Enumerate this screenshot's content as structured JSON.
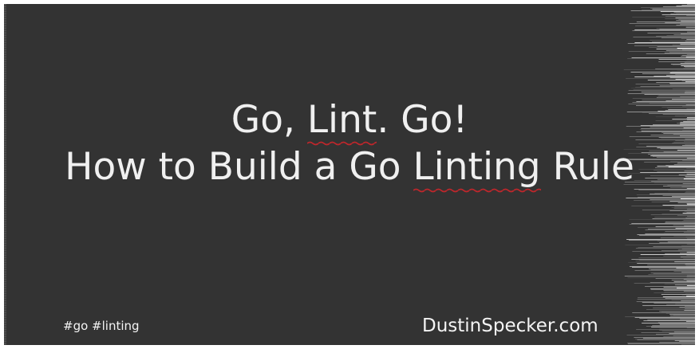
{
  "title": {
    "line1": {
      "before": "Go, ",
      "flagged": "Lint",
      "after": ". Go!"
    },
    "line2": {
      "before": "How to Build a Go ",
      "flagged": "Linting",
      "after": " Rule"
    }
  },
  "footer": {
    "tags": "#go #linting",
    "site": "DustinSpecker.com"
  },
  "colors": {
    "background": "#333333",
    "text": "#f0f0f0",
    "spellcheck_underline": "#c0262b"
  }
}
